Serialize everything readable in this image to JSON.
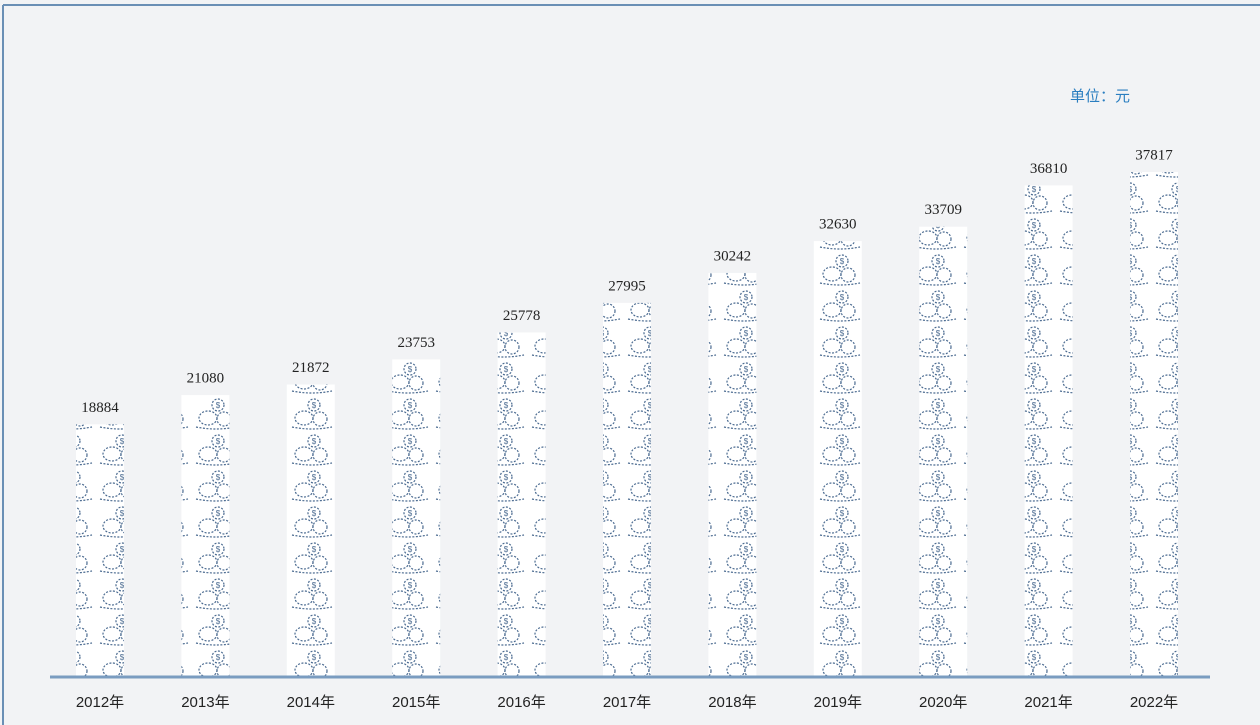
{
  "chart_data": {
    "type": "pictogram-bar",
    "unit_label": "单位：元",
    "categories": [
      "2012年",
      "2013年",
      "2014年",
      "2015年",
      "2016年",
      "2017年",
      "2018年",
      "2019年",
      "2020年",
      "2021年",
      "2022年"
    ],
    "values": [
      18884,
      21080,
      21872,
      23753,
      25778,
      27995,
      30242,
      32630,
      33709,
      36810,
      37817
    ],
    "color": "#4a6a90"
  }
}
